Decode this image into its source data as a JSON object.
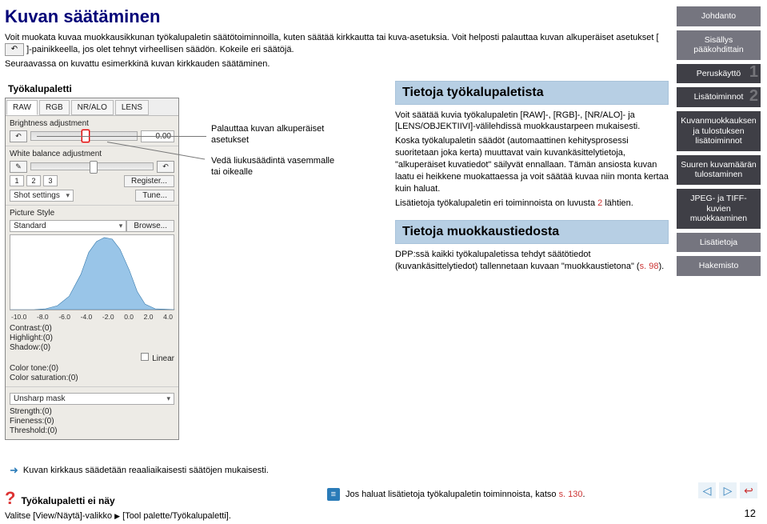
{
  "title": "Kuvan säätäminen",
  "intro": {
    "p1": "Voit muokata kuvaa muokkausikkunan työkalupaletin säätötoiminnoilla, kuten säätää kirkkautta tai kuva-asetuksia. Voit helposti palauttaa kuvan alkuperäiset asetukset [",
    "p1b": "]-painikkeella, jos olet tehnyt virheellisen säädön. Kokeile eri säätöjä.",
    "p2": "Seuraavassa on kuvattu esimerkkinä kuvan kirkkauden säätäminen."
  },
  "palette_label": "Työkalupaletti",
  "annotations": {
    "a1": "Palauttaa kuvan alkuperäiset asetukset",
    "a2": "Vedä liukusäädintä vasemmalle tai oikealle"
  },
  "panel": {
    "tabs": [
      "RAW",
      "RGB",
      "NR/ALO",
      "LENS"
    ],
    "brightness": {
      "label": "Brightness adjustment",
      "value": "0.00"
    },
    "wb": {
      "label": "White balance adjustment",
      "presets": [
        "1",
        "2",
        "3"
      ],
      "register": "Register...",
      "shot_label": "Shot settings",
      "tune": "Tune..."
    },
    "ps": {
      "label": "Picture Style",
      "value": "Standard",
      "browse": "Browse..."
    },
    "hist_scale": [
      "-10.0",
      "-8.0",
      "-6.0",
      "-4.0",
      "-2.0",
      "0.0",
      "2.0",
      "4.0"
    ],
    "readouts": {
      "contrast": "Contrast:(0)",
      "highlight": "Highlight:(0)",
      "shadow": "Shadow:(0)",
      "linear": "Linear",
      "colortone": "Color tone:(0)",
      "colorsat": "Color saturation:(0)"
    },
    "unsharp": {
      "label": "Unsharp mask",
      "strength": "Strength:(0)",
      "fineness": "Fineness:(0)",
      "threshold": "Threshold:(0)"
    }
  },
  "right": {
    "box1": "Tietoja työkalupaletista",
    "p1": "Voit säätää kuvia työkalupaletin [RAW]-, [RGB]-, [NR/ALO]- ja [LENS/OBJEKTIIVI]-välilehdissä muokkaustarpeen mukaisesti.",
    "p2": "Koska työkalupaletin säädöt (automaattinen kehitysprosessi suoritetaan joka kerta) muuttavat vain kuvankäsittelytietoja, \"alkuperäiset kuvatiedot\" säilyvät ennallaan. Tämän ansiosta kuvan laatu ei heikkene muokattaessa ja voit säätää kuvaa niin monta kertaa kuin haluat.",
    "p3a": "Lisätietoja työkalupaletin eri toiminnoista on luvusta ",
    "p3link": "2",
    "p3b": " lähtien.",
    "box2": "Tietoja muokkaustiedosta",
    "p4a": "DPP:ssä kaikki työkalupaletissa tehdyt säätötiedot (kuvankäsittelytiedot) tallennetaan kuvaan \"muokkaustietona\" (",
    "p4link": "s. 98",
    "p4b": ")."
  },
  "nav": {
    "items": [
      {
        "label": "Johdanto",
        "cls": "light"
      },
      {
        "label": "Sisällys pääkohdittain",
        "cls": "light"
      },
      {
        "label": "Peruskäyttö",
        "badge": "1"
      },
      {
        "label": "Lisätoiminnot",
        "badge": "2"
      },
      {
        "label": "Kuvanmuokkauksen ja tulostuksen lisätoiminnot"
      },
      {
        "label": "Suuren kuvamäärän tulostaminen"
      },
      {
        "label": "JPEG- ja TIFF-kuvien muokkaaminen"
      },
      {
        "label": "Lisätietoja",
        "cls": "light"
      },
      {
        "label": "Hakemisto",
        "cls": "light"
      }
    ]
  },
  "footer": {
    "arrow_line": "Kuvan kirkkaus säädetään reaaliaikaisesti säätöjen mukaisesti.",
    "help_title": "Työkalupaletti ei näy",
    "help_sub_a": "Valitse [View/Näytä]-valikko ",
    "help_sub_b": " [Tool palette/Työkalupaletti].",
    "tip_a": "Jos haluat lisätietoja työkalupaletin toiminnoista, katso ",
    "tip_link": "s. 130",
    "tip_b": ".",
    "pageno": "12"
  }
}
